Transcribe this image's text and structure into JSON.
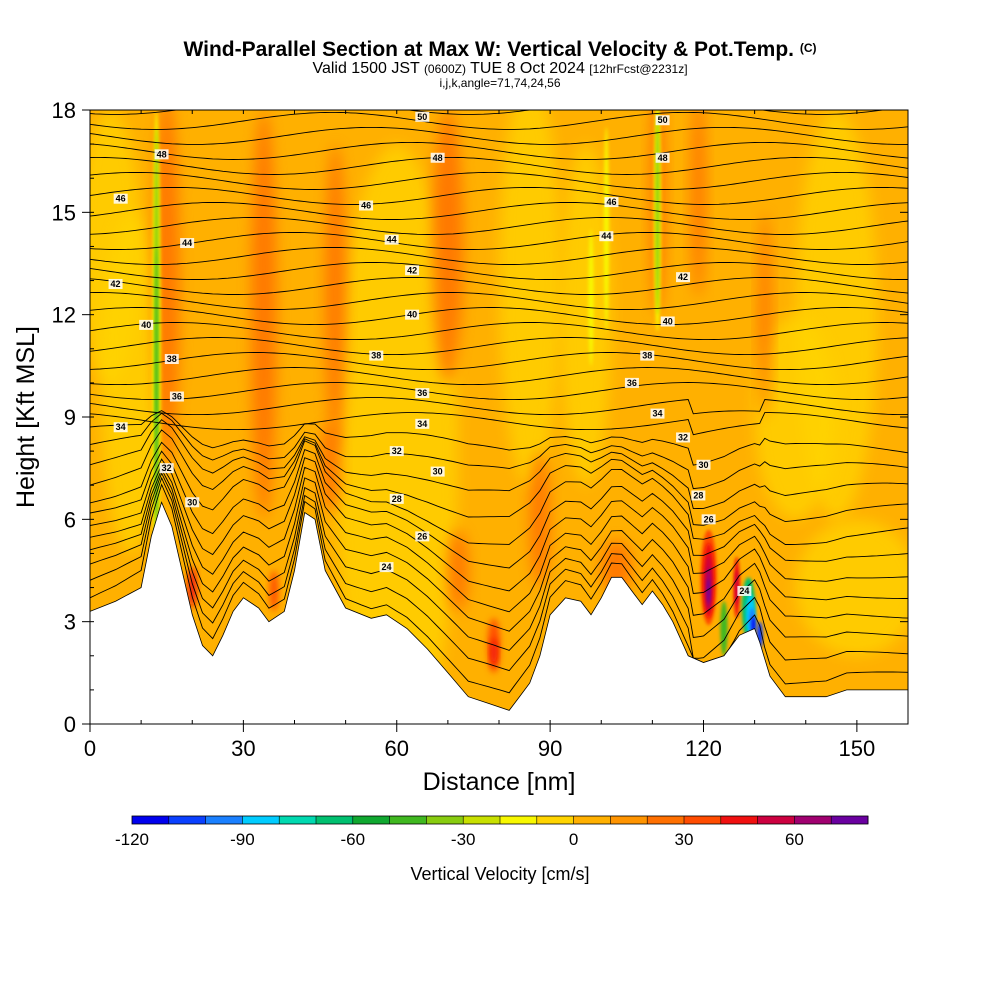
{
  "header": {
    "title_main": "Wind-Parallel Section at Max W: Vertical Velocity & Pot.Temp.",
    "title_mark": "(C)",
    "valid_prefix": "Valid 1500 JST",
    "valid_z": "(0600Z)",
    "valid_date": "TUE 8 Oct 2024",
    "valid_fcst": "[12hrFcst@2231z]",
    "ijk": "i,j,k,angle=71,74,24,56"
  },
  "chart_data": {
    "type": "heatmap",
    "title": "Wind-Parallel Section at Max W: Vertical Velocity & Pot.Temp.",
    "xlabel": "Distance [nm]",
    "ylabel": "Height [Kft MSL]",
    "xlim": [
      0,
      160
    ],
    "ylim": [
      0,
      18
    ],
    "xticks": [
      0,
      30,
      60,
      90,
      120,
      150
    ],
    "yticks": [
      0,
      3,
      6,
      9,
      12,
      15,
      18
    ],
    "colorbar": {
      "label": "Vertical Velocity [cm/s]",
      "range": [
        -120,
        80
      ],
      "ticks": [
        -120,
        -90,
        -60,
        -30,
        0,
        30,
        60
      ],
      "colors": [
        "#0000ee",
        "#0a40ff",
        "#1a80ff",
        "#00ccff",
        "#00d9b0",
        "#00c070",
        "#10a830",
        "#40b820",
        "#88cc10",
        "#c8e000",
        "#f8f800",
        "#ffd400",
        "#ffb000",
        "#ff9400",
        "#ff7000",
        "#ff4c00",
        "#f01010",
        "#cc0040",
        "#a00070",
        "#6a00a0"
      ]
    },
    "terrain": [
      [
        0,
        3.3
      ],
      [
        5,
        3.6
      ],
      [
        10,
        4.0
      ],
      [
        12,
        5.5
      ],
      [
        14,
        6.5
      ],
      [
        16,
        5.8
      ],
      [
        18,
        4.5
      ],
      [
        20,
        3.2
      ],
      [
        22,
        2.3
      ],
      [
        24,
        2.0
      ],
      [
        26,
        2.6
      ],
      [
        28,
        3.3
      ],
      [
        30,
        3.7
      ],
      [
        33,
        3.4
      ],
      [
        35,
        3.0
      ],
      [
        38,
        3.3
      ],
      [
        40,
        4.5
      ],
      [
        42,
        6.2
      ],
      [
        44,
        6.0
      ],
      [
        46,
        4.5
      ],
      [
        50,
        3.4
      ],
      [
        55,
        3.1
      ],
      [
        58,
        3.2
      ],
      [
        62,
        2.8
      ],
      [
        66,
        2.2
      ],
      [
        70,
        1.5
      ],
      [
        74,
        0.8
      ],
      [
        78,
        0.6
      ],
      [
        82,
        0.4
      ],
      [
        84,
        0.8
      ],
      [
        86,
        1.2
      ],
      [
        88,
        2.0
      ],
      [
        90,
        3.2
      ],
      [
        93,
        3.7
      ],
      [
        96,
        3.6
      ],
      [
        98,
        3.2
      ],
      [
        100,
        3.7
      ],
      [
        102,
        4.3
      ],
      [
        104,
        4.3
      ],
      [
        106,
        3.9
      ],
      [
        108,
        3.5
      ],
      [
        110,
        3.9
      ],
      [
        112,
        3.5
      ],
      [
        114,
        3.0
      ],
      [
        117,
        2.0
      ],
      [
        120,
        1.8
      ],
      [
        124,
        2.0
      ],
      [
        127,
        2.6
      ],
      [
        130,
        2.8
      ],
      [
        131,
        2.4
      ],
      [
        133,
        1.4
      ],
      [
        136,
        0.8
      ],
      [
        140,
        0.8
      ],
      [
        144,
        0.8
      ],
      [
        148,
        1.0
      ],
      [
        155,
        1.0
      ],
      [
        160,
        1.0
      ]
    ],
    "features": [
      {
        "x": 13,
        "z": 10,
        "w": -45,
        "desc": "narrow updraft/downdraft column"
      },
      {
        "x": 20,
        "z": 4,
        "w": 35
      },
      {
        "x": 36,
        "z": 3.8,
        "w": 30
      },
      {
        "x": 79,
        "z": 2.2,
        "w": 40
      },
      {
        "x": 100,
        "z": 12,
        "w": -20
      },
      {
        "x": 111,
        "z": 14,
        "w": -40
      },
      {
        "x": 121,
        "z": 4.0,
        "w": 75
      },
      {
        "x": 126,
        "z": 4.0,
        "w": 45
      },
      {
        "x": 129,
        "z": 3.2,
        "w": -110
      }
    ],
    "contour_labels": [
      {
        "x": 65,
        "z": 17.8,
        "t": "50"
      },
      {
        "x": 112,
        "z": 17.7,
        "t": "50"
      },
      {
        "x": 14,
        "z": 16.7,
        "t": "48"
      },
      {
        "x": 68,
        "z": 16.6,
        "t": "48"
      },
      {
        "x": 112,
        "z": 16.6,
        "t": "48"
      },
      {
        "x": 6,
        "z": 15.4,
        "t": "46"
      },
      {
        "x": 54,
        "z": 15.2,
        "t": "46"
      },
      {
        "x": 102,
        "z": 15.3,
        "t": "46"
      },
      {
        "x": 19,
        "z": 14.1,
        "t": "44"
      },
      {
        "x": 59,
        "z": 14.2,
        "t": "44"
      },
      {
        "x": 101,
        "z": 14.3,
        "t": "44"
      },
      {
        "x": 5,
        "z": 12.9,
        "t": "42"
      },
      {
        "x": 63,
        "z": 13.3,
        "t": "42"
      },
      {
        "x": 116,
        "z": 13.1,
        "t": "42"
      },
      {
        "x": 11,
        "z": 11.7,
        "t": "40"
      },
      {
        "x": 63,
        "z": 12.0,
        "t": "40"
      },
      {
        "x": 113,
        "z": 11.8,
        "t": "40"
      },
      {
        "x": 16,
        "z": 10.7,
        "t": "38"
      },
      {
        "x": 56,
        "z": 10.8,
        "t": "38"
      },
      {
        "x": 109,
        "z": 10.8,
        "t": "38"
      },
      {
        "x": 17,
        "z": 9.6,
        "t": "36"
      },
      {
        "x": 65,
        "z": 9.7,
        "t": "36"
      },
      {
        "x": 106,
        "z": 10.0,
        "t": "36"
      },
      {
        "x": 6,
        "z": 8.7,
        "t": "34"
      },
      {
        "x": 65,
        "z": 8.8,
        "t": "34"
      },
      {
        "x": 111,
        "z": 9.1,
        "t": "34"
      },
      {
        "x": 60,
        "z": 8.0,
        "t": "32"
      },
      {
        "x": 116,
        "z": 8.4,
        "t": "32"
      },
      {
        "x": 15,
        "z": 7.5,
        "t": "32"
      },
      {
        "x": 68,
        "z": 7.4,
        "t": "30"
      },
      {
        "x": 120,
        "z": 7.6,
        "t": "30"
      },
      {
        "x": 20,
        "z": 6.5,
        "t": "30"
      },
      {
        "x": 60,
        "z": 6.6,
        "t": "28"
      },
      {
        "x": 119,
        "z": 6.7,
        "t": "28"
      },
      {
        "x": 65,
        "z": 5.5,
        "t": "26"
      },
      {
        "x": 121,
        "z": 6.0,
        "t": "26"
      },
      {
        "x": 58,
        "z": 4.6,
        "t": "24"
      },
      {
        "x": 128,
        "z": 3.9,
        "t": "24"
      }
    ]
  }
}
